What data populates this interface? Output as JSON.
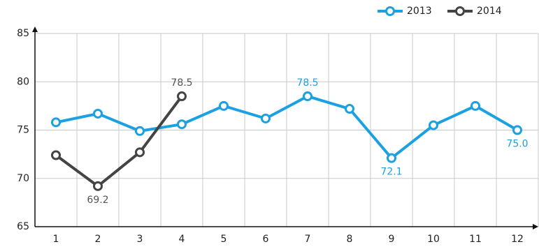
{
  "chart_data": {
    "type": "line",
    "categories": [
      "1",
      "2",
      "3",
      "4",
      "5",
      "6",
      "7",
      "8",
      "9",
      "10",
      "11",
      "12"
    ],
    "series": [
      {
        "name": "2013",
        "color": "#1ba1e2",
        "values": [
          75.8,
          76.7,
          74.9,
          75.6,
          77.5,
          76.2,
          78.5,
          77.2,
          72.1,
          75.5,
          77.5,
          75.0
        ],
        "value_labels": [
          null,
          null,
          null,
          null,
          null,
          null,
          "78.5",
          null,
          "72.1",
          null,
          null,
          "75.0"
        ]
      },
      {
        "name": "2014",
        "color": "#444444",
        "values": [
          72.4,
          69.2,
          72.7,
          78.5,
          null,
          null,
          null,
          null,
          null,
          null,
          null,
          null
        ],
        "value_labels": [
          null,
          "69.2",
          null,
          "78.5",
          null,
          null,
          null,
          null,
          null,
          null,
          null,
          null
        ]
      }
    ],
    "ylim": [
      65,
      85
    ],
    "yticks": [
      65,
      70,
      75,
      80,
      85
    ],
    "grid": true,
    "legend": "top-right"
  }
}
